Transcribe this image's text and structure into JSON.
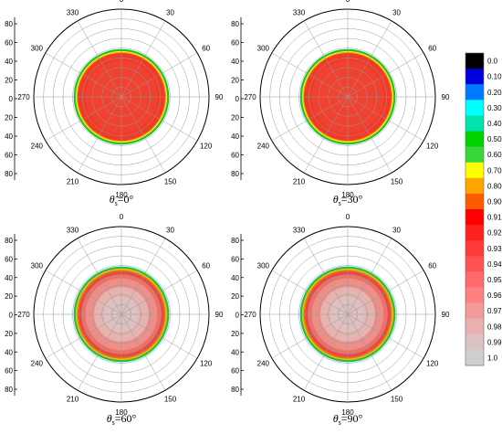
{
  "chart_data": [
    {
      "type": "polar-contour",
      "caption": {
        "sym": "θ",
        "sub": "s",
        "value": "=0°"
      },
      "angular_ticks": [
        "0",
        "30",
        "60",
        "90",
        "120",
        "150",
        "180",
        "210",
        "240",
        "270",
        "300",
        "330"
      ],
      "radial_ticks": [
        "80",
        "60",
        "40",
        "20",
        "0",
        "20",
        "40",
        "60",
        "80"
      ],
      "rlim": [
        0,
        90
      ],
      "rings": [
        {
          "r": 49,
          "color": "#16c32f"
        },
        {
          "r": 47,
          "color": "#ffef00"
        },
        {
          "r": 46,
          "color": "#f5a81c"
        },
        {
          "r": 45,
          "color": "#ef3b27"
        },
        {
          "r": 37,
          "color": "#f04230"
        }
      ]
    },
    {
      "type": "polar-contour",
      "caption": {
        "sym": "θ",
        "sub": "s",
        "value": "=30°"
      },
      "angular_ticks": [
        "0",
        "30",
        "60",
        "90",
        "120",
        "150",
        "180",
        "210",
        "240",
        "270",
        "300",
        "330"
      ],
      "radial_ticks": [
        "80",
        "60",
        "40",
        "20",
        "0",
        "20",
        "40",
        "60",
        "80"
      ],
      "rlim": [
        0,
        90
      ],
      "rings": [
        {
          "r": 49,
          "color": "#16c32f"
        },
        {
          "r": 47,
          "color": "#ffef00"
        },
        {
          "r": 46,
          "color": "#f5a81c"
        },
        {
          "r": 45,
          "color": "#ef3b27"
        },
        {
          "r": 37,
          "color": "#f04230"
        }
      ]
    },
    {
      "type": "polar-contour",
      "caption": {
        "sym": "θ",
        "sub": "s",
        "value": "=60°"
      },
      "angular_ticks": [
        "0",
        "30",
        "60",
        "90",
        "120",
        "150",
        "180",
        "210",
        "240",
        "270",
        "300",
        "330"
      ],
      "radial_ticks": [
        "80",
        "60",
        "40",
        "20",
        "0",
        "20",
        "40",
        "60",
        "80"
      ],
      "rlim": [
        0,
        90
      ],
      "rings": [
        {
          "r": 52,
          "color": "#e9fbff"
        },
        {
          "r": 49,
          "color": "#25bd3a"
        },
        {
          "r": 47,
          "color": "#e6c400"
        },
        {
          "r": 45.5,
          "color": "#e2752c"
        },
        {
          "r": 44,
          "color": "#e94a40"
        },
        {
          "r": 41,
          "color": "#ef6f66"
        },
        {
          "r": 37,
          "color": "#ec8f89"
        },
        {
          "r": 28,
          "color": "#e5b4b1"
        },
        {
          "r": 18,
          "color": "#ddc0bf"
        }
      ]
    },
    {
      "type": "polar-contour",
      "caption": {
        "sym": "θ",
        "sub": "s",
        "value": "=90°"
      },
      "angular_ticks": [
        "0",
        "30",
        "60",
        "90",
        "120",
        "150",
        "180",
        "210",
        "240",
        "270",
        "300",
        "330"
      ],
      "radial_ticks": [
        "80",
        "60",
        "40",
        "20",
        "0",
        "20",
        "40",
        "60",
        "80"
      ],
      "rlim": [
        0,
        90
      ],
      "rings": [
        {
          "r": 52,
          "color": "#e9fbff"
        },
        {
          "r": 49,
          "color": "#25bd3a"
        },
        {
          "r": 47,
          "color": "#e6c400"
        },
        {
          "r": 45.5,
          "color": "#e2752c"
        },
        {
          "r": 44,
          "color": "#e94a40"
        },
        {
          "r": 41,
          "color": "#ef6f66"
        },
        {
          "r": 37,
          "color": "#ec8f89"
        },
        {
          "r": 28,
          "color": "#e5b4b1"
        },
        {
          "r": 18,
          "color": "#ddc0bf"
        }
      ]
    }
  ],
  "colorbar": {
    "labels": [
      "0.0",
      "0.10",
      "0.20",
      "0.30",
      "0.40",
      "0.50",
      "0.60",
      "0.70",
      "0.80",
      "0.90",
      "0.91",
      "0.92",
      "0.93",
      "0.94",
      "0.95",
      "0.96",
      "0.97",
      "0.98",
      "0.99",
      "1.0"
    ],
    "colors": [
      "#000000",
      "#0000dd",
      "#0078ff",
      "#00ffff",
      "#00e5b0",
      "#00d200",
      "#38d83a",
      "#ffff00",
      "#ffa500",
      "#ff5a00",
      "#ff0000",
      "#ff2020",
      "#ff3a3a",
      "#ff5252",
      "#ff6a6a",
      "#ff8080",
      "#f59a9a",
      "#e9b0b0",
      "#dcc2c2",
      "#cfcfcf"
    ]
  }
}
